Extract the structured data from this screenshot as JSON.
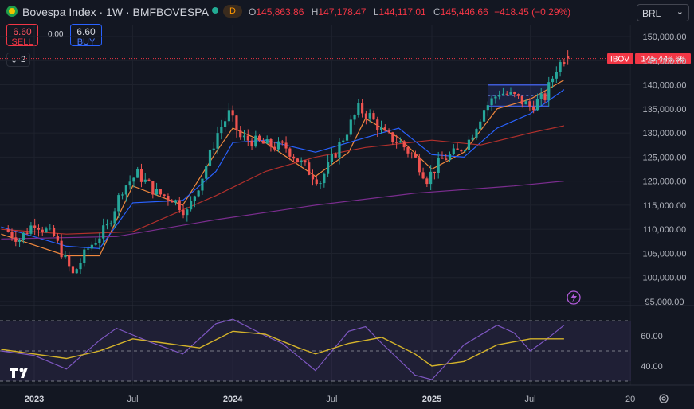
{
  "header": {
    "title": "Bovespa Index · 1W · BMFBOVESPA",
    "status_badge": "D",
    "ohlc": {
      "o_label": "O",
      "o": "145,863.86",
      "h_label": "H",
      "h": "147,178.47",
      "l_label": "L",
      "l": "144,117.01",
      "c_label": "C",
      "c": "145,446.66",
      "change": "−418.45 (−0.29%)"
    },
    "currency": "BRL"
  },
  "trade": {
    "sell_price": "6.60",
    "sell_label": "SELL",
    "spread": "0.00",
    "buy_price": "6.60",
    "buy_label": "BUY"
  },
  "indicators_count": "2",
  "price_axis": {
    "ticks": [
      "150,000.00",
      "145,000.00",
      "140,000.00",
      "135,000.00",
      "130,000.00",
      "125,000.00",
      "120,000.00",
      "115,000.00",
      "110,000.00",
      "105,000.00",
      "100,000.00",
      "95,000.00"
    ]
  },
  "last_price": {
    "symbol": "IBOV",
    "value": "145,446.66"
  },
  "rsi_axis": {
    "ticks": [
      "60.00",
      "40.00"
    ]
  },
  "time_axis": {
    "labels": [
      "2023",
      "Jul",
      "2024",
      "Jul",
      "2025",
      "Jul",
      "20"
    ]
  },
  "colors": {
    "up": "#26a69a",
    "down": "#ef5350",
    "ma_fast": "#f0883e",
    "ma_mid": "#2962ff",
    "ma_slow": "#b2302c",
    "ma_long": "#7b2d8f",
    "rsi": "#7e57c2",
    "rsi_ma": "#d4b32b",
    "box": "#3f5bd6"
  },
  "chart_data": {
    "type": "candlestick",
    "title": "Bovespa Index · 1W · BMFBOVESPA",
    "currency": "BRL",
    "x_range": [
      "2022-11",
      "2025-09"
    ],
    "ylim": [
      95000,
      150000
    ],
    "close_path": [
      {
        "date": "2022-11-14",
        "close": 110000
      },
      {
        "date": "2022-12-12",
        "close": 108000
      },
      {
        "date": "2023-01-09",
        "close": 111500
      },
      {
        "date": "2023-02-13",
        "close": 108500
      },
      {
        "date": "2023-03-20",
        "close": 100500
      },
      {
        "date": "2023-04-17",
        "close": 106000
      },
      {
        "date": "2023-05-22",
        "close": 110500
      },
      {
        "date": "2023-06-19",
        "close": 118500
      },
      {
        "date": "2023-07-17",
        "close": 121500
      },
      {
        "date": "2023-08-21",
        "close": 117500
      },
      {
        "date": "2023-09-18",
        "close": 116500
      },
      {
        "date": "2023-10-16",
        "close": 113500
      },
      {
        "date": "2023-11-13",
        "close": 121000
      },
      {
        "date": "2023-12-11",
        "close": 130000
      },
      {
        "date": "2024-01-01",
        "close": 134000
      },
      {
        "date": "2024-01-22",
        "close": 129000
      },
      {
        "date": "2024-03-11",
        "close": 127500
      },
      {
        "date": "2024-04-15",
        "close": 127000
      },
      {
        "date": "2024-05-27",
        "close": 122000
      },
      {
        "date": "2024-06-17",
        "close": 120000
      },
      {
        "date": "2024-07-22",
        "close": 127500
      },
      {
        "date": "2024-08-26",
        "close": 135000
      },
      {
        "date": "2024-09-16",
        "close": 133500
      },
      {
        "date": "2024-10-14",
        "close": 129500
      },
      {
        "date": "2024-11-11",
        "close": 128000
      },
      {
        "date": "2024-12-09",
        "close": 124500
      },
      {
        "date": "2024-12-30",
        "close": 120500
      },
      {
        "date": "2025-01-27",
        "close": 124500
      },
      {
        "date": "2025-02-24",
        "close": 126000
      },
      {
        "date": "2025-03-17",
        "close": 128500
      },
      {
        "date": "2025-04-14",
        "close": 135000
      },
      {
        "date": "2025-05-12",
        "close": 138500
      },
      {
        "date": "2025-06-09",
        "close": 137500
      },
      {
        "date": "2025-07-07",
        "close": 135500
      },
      {
        "date": "2025-08-04",
        "close": 137500
      },
      {
        "date": "2025-08-25",
        "close": 143500
      },
      {
        "date": "2025-09-08",
        "close": 145446.66
      }
    ],
    "last_bar": {
      "open": 145863.86,
      "high": 147178.47,
      "low": 144117.01,
      "close": 145446.66,
      "change": -418.45,
      "change_pct": -0.29
    },
    "moving_averages": [
      {
        "color": "#f0883e",
        "points": [
          [
            "2022-11",
            109000
          ],
          [
            "2023-03",
            104500
          ],
          [
            "2023-05",
            104500
          ],
          [
            "2023-07",
            119000
          ],
          [
            "2023-10",
            115000
          ],
          [
            "2023-12",
            126000
          ],
          [
            "2024-01",
            131000
          ],
          [
            "2024-03",
            128000
          ],
          [
            "2024-06",
            121000
          ],
          [
            "2024-08",
            126000
          ],
          [
            "2024-09",
            133000
          ],
          [
            "2024-11",
            129000
          ],
          [
            "2025-01",
            122500
          ],
          [
            "2025-03",
            126000
          ],
          [
            "2025-05",
            135000
          ],
          [
            "2025-07",
            137000
          ],
          [
            "2025-09",
            141000
          ]
        ]
      },
      {
        "color": "#2962ff",
        "points": [
          [
            "2022-11",
            110500
          ],
          [
            "2023-03",
            106500
          ],
          [
            "2023-05",
            106000
          ],
          [
            "2023-07",
            115500
          ],
          [
            "2023-10",
            116000
          ],
          [
            "2023-12",
            122000
          ],
          [
            "2024-01",
            128000
          ],
          [
            "2024-03",
            128500
          ],
          [
            "2024-06",
            126000
          ],
          [
            "2024-08",
            128000
          ],
          [
            "2024-10",
            130000
          ],
          [
            "2024-11",
            131000
          ],
          [
            "2025-01",
            125500
          ],
          [
            "2025-03",
            125000
          ],
          [
            "2025-05",
            131000
          ],
          [
            "2025-07",
            134000
          ],
          [
            "2025-09",
            139000
          ]
        ]
      },
      {
        "color": "#b2302c",
        "points": [
          [
            "2022-11",
            110000
          ],
          [
            "2023-03",
            109000
          ],
          [
            "2023-07",
            109500
          ],
          [
            "2023-12",
            117000
          ],
          [
            "2024-03",
            122000
          ],
          [
            "2024-06",
            125000
          ],
          [
            "2024-09",
            127000
          ],
          [
            "2025-01",
            128500
          ],
          [
            "2025-04",
            127500
          ],
          [
            "2025-07",
            130000
          ],
          [
            "2025-09",
            131500
          ]
        ]
      },
      {
        "color": "#7b2d8f",
        "points": [
          [
            "2022-11",
            108000
          ],
          [
            "2023-06",
            108500
          ],
          [
            "2023-12",
            112000
          ],
          [
            "2024-06",
            115000
          ],
          [
            "2024-12",
            117500
          ],
          [
            "2025-06",
            119000
          ],
          [
            "2025-09",
            120000
          ]
        ]
      }
    ],
    "rsi": {
      "ticks": [
        60,
        40
      ],
      "ylim": [
        30,
        72
      ],
      "band": [
        30,
        70
      ],
      "guides": [
        70,
        50,
        30
      ],
      "rsi_line": [
        [
          "2022-11",
          50
        ],
        [
          "2023-01",
          47
        ],
        [
          "2023-03",
          38
        ],
        [
          "2023-05",
          57
        ],
        [
          "2023-06",
          65
        ],
        [
          "2023-08",
          56
        ],
        [
          "2023-10",
          48
        ],
        [
          "2023-12",
          68
        ],
        [
          "2024-01",
          71
        ],
        [
          "2024-03",
          60
        ],
        [
          "2024-04",
          55
        ],
        [
          "2024-06",
          37
        ],
        [
          "2024-08",
          63
        ],
        [
          "2024-09",
          66
        ],
        [
          "2024-10",
          55
        ],
        [
          "2024-12",
          34
        ],
        [
          "2025-01",
          31
        ],
        [
          "2025-03",
          54
        ],
        [
          "2025-05",
          67
        ],
        [
          "2025-06",
          62
        ],
        [
          "2025-07",
          50
        ],
        [
          "2025-08",
          58
        ],
        [
          "2025-09",
          67
        ]
      ],
      "signal_line": [
        [
          "2022-11",
          51
        ],
        [
          "2023-03",
          45
        ],
        [
          "2023-05",
          50
        ],
        [
          "2023-07",
          58
        ],
        [
          "2023-09",
          55
        ],
        [
          "2023-11",
          52
        ],
        [
          "2024-01",
          63
        ],
        [
          "2024-03",
          61
        ],
        [
          "2024-05",
          52
        ],
        [
          "2024-06",
          48
        ],
        [
          "2024-08",
          55
        ],
        [
          "2024-10",
          59
        ],
        [
          "2024-12",
          48
        ],
        [
          "2025-01",
          40
        ],
        [
          "2025-03",
          43
        ],
        [
          "2025-05",
          54
        ],
        [
          "2025-07",
          58
        ],
        [
          "2025-09",
          58
        ]
      ]
    }
  }
}
